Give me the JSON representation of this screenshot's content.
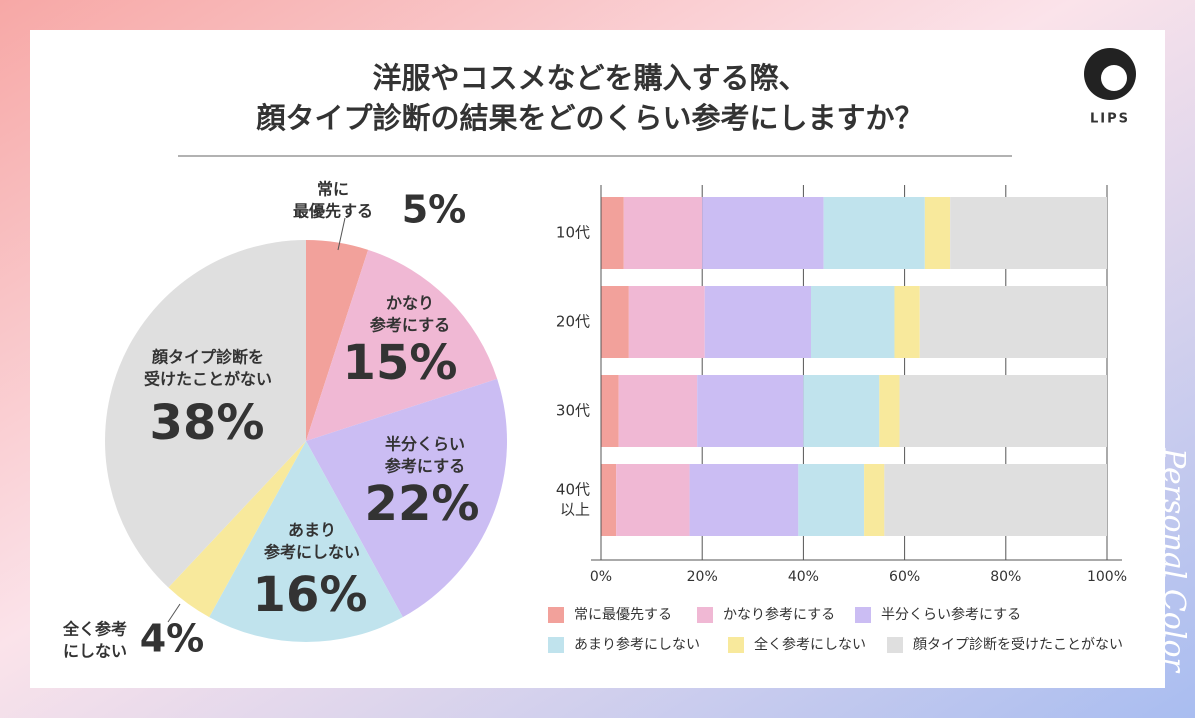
{
  "header": {
    "title": [
      "洋服やコスメなどを購入する際、",
      "顔タイプ診断の結果をどのくらい参考にしますか？"
    ],
    "logo": "LIPS"
  },
  "side_text": "Personal Color",
  "chart_data": [
    {
      "type": "pie",
      "labels": [
        [
          "常に",
          "最優先する"
        ],
        [
          "かなり",
          "参考にする"
        ],
        [
          "半分くらい",
          "参考にする"
        ],
        [
          "あまり",
          "参考にしない"
        ],
        [
          "全く参考",
          "にしない"
        ],
        [
          "顔タイプ診断を",
          "受けたことがない"
        ]
      ],
      "values": [
        5,
        15,
        22,
        16,
        4,
        38
      ],
      "value_labels": [
        "5%",
        "15%",
        "22%",
        "16%",
        "4%",
        "38%"
      ],
      "colors": [
        "#f2a19b",
        "#f0b8d4",
        "#cbbdf3",
        "#c0e3ed",
        "#f8e99c",
        "#dfdfdf"
      ]
    },
    {
      "type": "stacked-bar",
      "categories": [
        [
          "10代"
        ],
        [
          "20代"
        ],
        [
          "30代"
        ],
        [
          "40代",
          "以上"
        ]
      ],
      "series": [
        {
          "name": "常に最優先する",
          "color": "#f2a19b",
          "values": [
            4.5,
            5.5,
            3.5,
            3
          ]
        },
        {
          "name": "かなり参考にする",
          "color": "#f0b8d4",
          "values": [
            15.5,
            15,
            15.5,
            14.5
          ]
        },
        {
          "name": "半分くらい参考にする",
          "color": "#cbbdf3",
          "values": [
            24,
            21,
            21,
            21.5
          ]
        },
        {
          "name": "あまり参考にしない",
          "color": "#c0e3ed",
          "values": [
            20,
            16.5,
            15,
            13
          ]
        },
        {
          "name": "全く参考にしない",
          "color": "#f8e99c",
          "values": [
            5,
            5,
            4,
            4
          ]
        },
        {
          "name": "顔タイプ診断を受けたことがない",
          "color": "#dfdfdf",
          "values": [
            31,
            37,
            41,
            44
          ]
        }
      ],
      "xlim": [
        0,
        100
      ],
      "xticks": [
        {
          "value": 0,
          "label": "0%"
        },
        {
          "value": 20,
          "label": "20%"
        },
        {
          "value": 40,
          "label": "40%"
        },
        {
          "value": 60,
          "label": "60%"
        },
        {
          "value": 80,
          "label": "80%"
        },
        {
          "value": 100,
          "label": "100%"
        }
      ],
      "grid": true
    }
  ]
}
